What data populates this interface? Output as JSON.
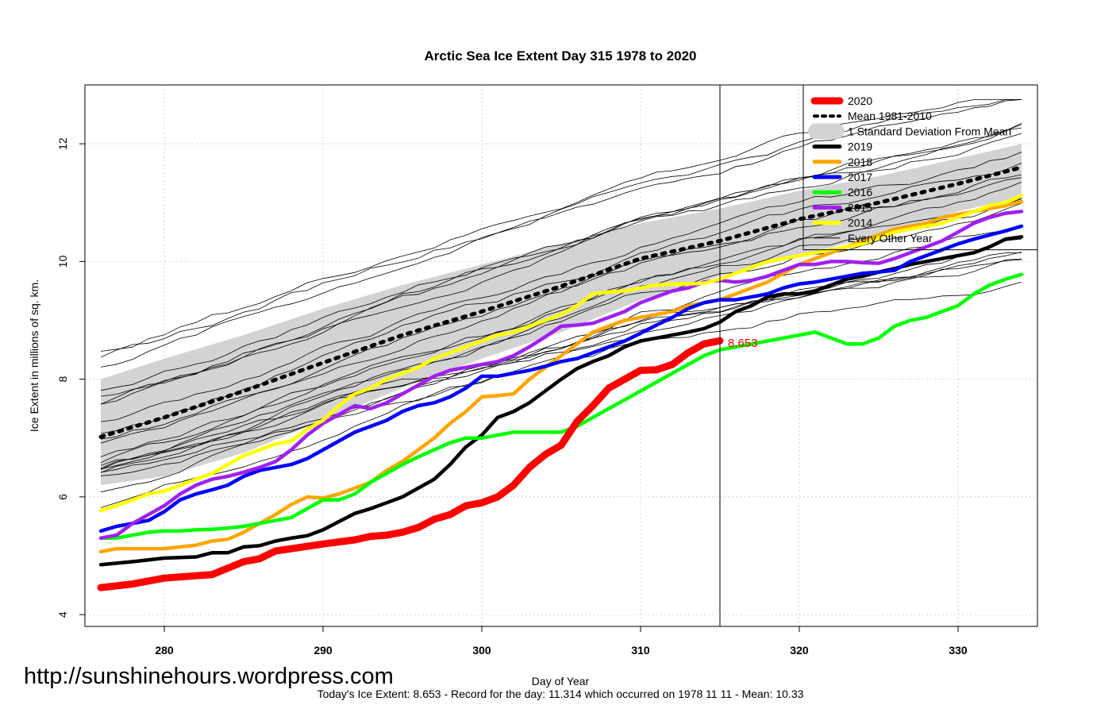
{
  "watermark": "http://sunshinehours.wordpress.com",
  "footer": "Today's Ice Extent: 8.653  - Record for the day: 11.314 which occurred on 1978 11 11  - Mean: 10.33",
  "chart_data": {
    "type": "line",
    "title": "Arctic Sea Ice Extent Day 315 1978 to 2020",
    "xlabel": "Day of Year",
    "ylabel": "Ice Extent in millions of sq. km.",
    "xlim": [
      275,
      335
    ],
    "ylim": [
      3.8,
      13.0
    ],
    "x_ticks": [
      280,
      290,
      300,
      310,
      320,
      330
    ],
    "y_ticks": [
      4,
      6,
      8,
      10,
      12
    ],
    "grid": true,
    "vline_day": 315,
    "hline_value": 10.2,
    "value_label": "8.653",
    "legend_position": "top-right",
    "legend": [
      {
        "label": "2020",
        "color": "#ff0000",
        "style": "thick"
      },
      {
        "label": "Mean 1981-2010",
        "color": "#000000",
        "style": "dotted"
      },
      {
        "label": "1 Standard Deviation From Mean",
        "color": "#d3d3d3",
        "style": "band"
      },
      {
        "label": "2019",
        "color": "#000000",
        "style": "medium"
      },
      {
        "label": "2018",
        "color": "#ffa500",
        "style": "medium"
      },
      {
        "label": "2017",
        "color": "#0000ff",
        "style": "medium"
      },
      {
        "label": "2016",
        "color": "#00ff00",
        "style": "medium"
      },
      {
        "label": "2015",
        "color": "#a020f0",
        "style": "medium"
      },
      {
        "label": "2014",
        "color": "#ffff00",
        "style": "medium"
      },
      {
        "label": "Every Other Year",
        "color": "#000000",
        "style": "thin"
      }
    ],
    "mean": {
      "x": [
        276,
        280,
        285,
        290,
        295,
        300,
        305,
        310,
        315,
        320,
        325,
        330,
        334
      ],
      "values": [
        7.02,
        7.35,
        7.8,
        8.28,
        8.75,
        9.15,
        9.58,
        10.05,
        10.35,
        10.72,
        11.0,
        11.32,
        11.6
      ]
    },
    "sd_band": {
      "x": [
        276,
        280,
        285,
        290,
        295,
        300,
        305,
        310,
        315,
        320,
        325,
        330,
        334
      ],
      "upper": [
        8.0,
        8.35,
        8.75,
        9.2,
        9.6,
        9.95,
        10.3,
        10.65,
        10.9,
        11.2,
        11.45,
        11.75,
        12.0
      ],
      "lower": [
        6.2,
        6.35,
        6.75,
        7.3,
        7.85,
        8.35,
        8.8,
        9.35,
        9.75,
        10.1,
        10.45,
        10.85,
        11.1
      ]
    },
    "series": [
      {
        "name": "2020",
        "color": "#ff0000",
        "width": 9,
        "x": [
          276,
          278,
          280,
          282,
          283,
          285,
          286,
          287,
          290,
          292,
          293,
          294,
          295,
          296,
          297,
          298,
          299,
          300,
          301,
          302,
          303,
          304,
          305,
          306,
          307,
          308,
          309,
          310,
          311,
          312,
          313,
          314,
          315
        ],
        "values": [
          4.46,
          4.52,
          4.62,
          4.66,
          4.68,
          4.9,
          4.95,
          5.08,
          5.2,
          5.27,
          5.33,
          5.35,
          5.4,
          5.48,
          5.62,
          5.7,
          5.85,
          5.9,
          6.0,
          6.2,
          6.5,
          6.72,
          6.88,
          7.28,
          7.55,
          7.85,
          8.0,
          8.15,
          8.16,
          8.25,
          8.45,
          8.6,
          8.653
        ]
      },
      {
        "name": "2019",
        "color": "#000000",
        "width": 4.5,
        "x": [
          276,
          278,
          280,
          282,
          283,
          284,
          285,
          286,
          287,
          288,
          289,
          290,
          291,
          292,
          293,
          294,
          295,
          296,
          297,
          298,
          299,
          300,
          301,
          302,
          303,
          304,
          305,
          306,
          307,
          308,
          309,
          310,
          311,
          312,
          313,
          314,
          315,
          316,
          317,
          318,
          319,
          320,
          321,
          322,
          323,
          324,
          325,
          326,
          327,
          328,
          329,
          330,
          331,
          332,
          333,
          334
        ],
        "values": [
          4.85,
          4.9,
          4.96,
          4.98,
          5.05,
          5.05,
          5.15,
          5.17,
          5.25,
          5.3,
          5.34,
          5.44,
          5.58,
          5.72,
          5.8,
          5.9,
          6.0,
          6.15,
          6.3,
          6.55,
          6.85,
          7.05,
          7.35,
          7.45,
          7.6,
          7.8,
          8.0,
          8.18,
          8.3,
          8.4,
          8.55,
          8.65,
          8.7,
          8.75,
          8.8,
          8.86,
          8.97,
          9.15,
          9.25,
          9.4,
          9.45,
          9.45,
          9.5,
          9.6,
          9.7,
          9.75,
          9.82,
          9.88,
          9.95,
          10.0,
          10.05,
          10.1,
          10.15,
          10.25,
          10.38,
          10.42
        ]
      },
      {
        "name": "2018",
        "color": "#ffa500",
        "width": 4.5,
        "x": [
          276,
          277,
          278,
          279,
          280,
          281,
          282,
          283,
          284,
          285,
          286,
          287,
          288,
          289,
          290,
          291,
          292,
          293,
          294,
          295,
          296,
          297,
          298,
          299,
          300,
          301,
          302,
          303,
          304,
          305,
          306,
          307,
          308,
          309,
          310,
          311,
          312,
          313,
          314,
          315,
          316,
          317,
          318,
          319,
          320,
          321,
          322,
          323,
          324,
          325,
          326,
          327,
          328,
          329,
          330,
          331,
          332,
          333,
          334
        ],
        "values": [
          5.07,
          5.12,
          5.12,
          5.12,
          5.12,
          5.15,
          5.18,
          5.25,
          5.28,
          5.4,
          5.55,
          5.7,
          5.87,
          6.0,
          5.98,
          6.05,
          6.15,
          6.25,
          6.45,
          6.6,
          6.8,
          7.0,
          7.25,
          7.45,
          7.7,
          7.72,
          7.75,
          8.0,
          8.2,
          8.4,
          8.6,
          8.8,
          8.9,
          9.0,
          9.05,
          9.1,
          9.15,
          9.25,
          9.3,
          9.35,
          9.45,
          9.55,
          9.65,
          9.8,
          9.95,
          10.05,
          10.15,
          10.25,
          10.35,
          10.45,
          10.55,
          10.6,
          10.65,
          10.75,
          10.8,
          10.85,
          10.9,
          10.95,
          11.02
        ]
      },
      {
        "name": "2017",
        "color": "#0000ff",
        "width": 4.5,
        "x": [
          276,
          277,
          278,
          279,
          280,
          281,
          282,
          283,
          284,
          285,
          286,
          287,
          288,
          289,
          290,
          291,
          292,
          293,
          294,
          295,
          296,
          297,
          298,
          299,
          300,
          301,
          302,
          303,
          304,
          305,
          306,
          307,
          308,
          309,
          310,
          311,
          312,
          313,
          314,
          315,
          316,
          317,
          318,
          319,
          320,
          321,
          322,
          323,
          324,
          325,
          326,
          327,
          328,
          329,
          330,
          331,
          332,
          333,
          334
        ],
        "values": [
          5.42,
          5.5,
          5.55,
          5.6,
          5.75,
          5.95,
          6.05,
          6.12,
          6.2,
          6.35,
          6.45,
          6.5,
          6.55,
          6.65,
          6.8,
          6.95,
          7.1,
          7.2,
          7.3,
          7.45,
          7.55,
          7.6,
          7.7,
          7.85,
          8.05,
          8.05,
          8.1,
          8.15,
          8.22,
          8.3,
          8.35,
          8.45,
          8.55,
          8.65,
          8.78,
          8.92,
          9.05,
          9.2,
          9.3,
          9.35,
          9.35,
          9.4,
          9.45,
          9.55,
          9.62,
          9.65,
          9.7,
          9.75,
          9.8,
          9.82,
          9.85,
          10.0,
          10.1,
          10.2,
          10.3,
          10.38,
          10.45,
          10.52,
          10.6
        ]
      },
      {
        "name": "2016",
        "color": "#00ff00",
        "width": 4.5,
        "x": [
          276,
          277,
          278,
          279,
          280,
          281,
          282,
          283,
          284,
          285,
          286,
          287,
          288,
          289,
          290,
          291,
          292,
          293,
          294,
          295,
          296,
          297,
          298,
          299,
          300,
          301,
          302,
          303,
          304,
          305,
          306,
          307,
          308,
          309,
          310,
          311,
          312,
          313,
          314,
          315,
          316,
          317,
          318,
          319,
          320,
          321,
          322,
          323,
          324,
          325,
          326,
          327,
          328,
          329,
          330,
          331,
          332,
          333,
          334
        ],
        "values": [
          5.3,
          5.3,
          5.35,
          5.4,
          5.42,
          5.42,
          5.44,
          5.45,
          5.47,
          5.5,
          5.55,
          5.6,
          5.65,
          5.8,
          5.95,
          5.95,
          6.05,
          6.25,
          6.4,
          6.55,
          6.68,
          6.8,
          6.92,
          7.0,
          7.0,
          7.05,
          7.1,
          7.1,
          7.1,
          7.1,
          7.2,
          7.35,
          7.5,
          7.65,
          7.8,
          7.95,
          8.1,
          8.25,
          8.4,
          8.5,
          8.55,
          8.6,
          8.65,
          8.7,
          8.75,
          8.8,
          8.7,
          8.6,
          8.6,
          8.7,
          8.9,
          9.0,
          9.05,
          9.15,
          9.25,
          9.45,
          9.6,
          9.7,
          9.78
        ]
      },
      {
        "name": "2015",
        "color": "#a020f0",
        "width": 4.5,
        "x": [
          276,
          277,
          278,
          279,
          280,
          281,
          282,
          283,
          284,
          285,
          286,
          287,
          288,
          289,
          290,
          291,
          292,
          293,
          294,
          295,
          296,
          297,
          298,
          299,
          300,
          301,
          302,
          303,
          304,
          305,
          306,
          307,
          308,
          309,
          310,
          311,
          312,
          313,
          314,
          315,
          316,
          317,
          318,
          319,
          320,
          321,
          322,
          323,
          324,
          325,
          326,
          327,
          328,
          329,
          330,
          331,
          332,
          333,
          334
        ],
        "values": [
          5.3,
          5.35,
          5.55,
          5.7,
          5.85,
          6.05,
          6.2,
          6.3,
          6.35,
          6.42,
          6.5,
          6.6,
          6.8,
          7.05,
          7.25,
          7.4,
          7.55,
          7.5,
          7.6,
          7.75,
          7.9,
          8.05,
          8.15,
          8.2,
          8.25,
          8.3,
          8.4,
          8.55,
          8.72,
          8.9,
          8.92,
          8.95,
          9.05,
          9.15,
          9.3,
          9.4,
          9.5,
          9.55,
          9.65,
          9.68,
          9.65,
          9.68,
          9.75,
          9.85,
          9.95,
          9.95,
          10.0,
          10.0,
          9.98,
          9.97,
          10.05,
          10.15,
          10.25,
          10.35,
          10.5,
          10.65,
          10.75,
          10.82,
          10.85
        ]
      },
      {
        "name": "2014",
        "color": "#ffff00",
        "width": 4.5,
        "x": [
          276,
          277,
          278,
          279,
          280,
          281,
          282,
          283,
          284,
          285,
          286,
          287,
          288,
          289,
          290,
          291,
          292,
          293,
          294,
          295,
          296,
          297,
          298,
          299,
          300,
          301,
          302,
          303,
          304,
          305,
          306,
          307,
          308,
          309,
          310,
          311,
          312,
          313,
          314,
          315,
          316,
          317,
          318,
          319,
          320,
          321,
          322,
          323,
          324,
          325,
          326,
          327,
          328,
          329,
          330,
          331,
          332,
          333,
          334
        ],
        "values": [
          5.77,
          5.85,
          5.95,
          6.05,
          6.1,
          6.2,
          6.3,
          6.4,
          6.55,
          6.7,
          6.8,
          6.9,
          6.95,
          7.15,
          7.3,
          7.55,
          7.75,
          7.85,
          8.0,
          8.1,
          8.2,
          8.35,
          8.45,
          8.55,
          8.65,
          8.75,
          8.8,
          8.9,
          9.0,
          9.1,
          9.25,
          9.45,
          9.48,
          9.5,
          9.55,
          9.6,
          9.62,
          9.62,
          9.63,
          9.7,
          9.8,
          9.9,
          10.0,
          10.05,
          10.1,
          10.15,
          10.2,
          10.25,
          10.3,
          10.4,
          10.5,
          10.55,
          10.6,
          10.65,
          10.75,
          10.85,
          10.95,
          11.0,
          11.12
        ]
      }
    ]
  }
}
